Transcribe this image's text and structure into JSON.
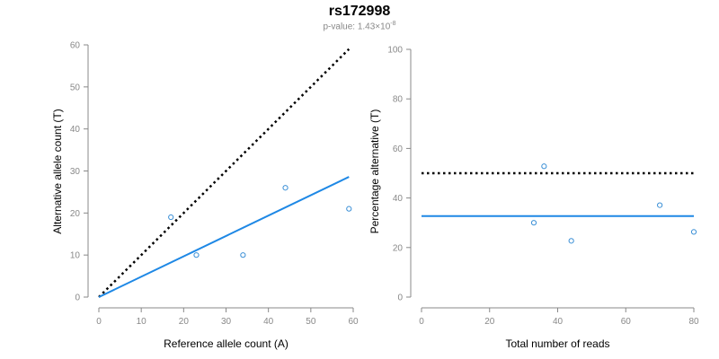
{
  "header": {
    "title": "rs172998",
    "pvalue_prefix": "p-value: 1.43×10",
    "pvalue_exponent": "-8"
  },
  "colors": {
    "points": "#3a8fd6",
    "fit_line": "#1e88e5",
    "reference_line": "#000000",
    "axis": "#888888"
  },
  "chart_data": [
    {
      "type": "scatter",
      "name": "allele-counts",
      "title": "",
      "xlabel": "Reference allele count (A)",
      "ylabel": "Alternative allele count (T)",
      "xlim": [
        0,
        60
      ],
      "ylim": [
        0,
        60
      ],
      "xticks": [
        0,
        10,
        20,
        30,
        40,
        50,
        60
      ],
      "yticks": [
        0,
        10,
        20,
        30,
        40,
        50,
        60
      ],
      "grid": false,
      "points": [
        {
          "x": 17,
          "y": 19
        },
        {
          "x": 23,
          "y": 10
        },
        {
          "x": 34,
          "y": 10
        },
        {
          "x": 44,
          "y": 26
        },
        {
          "x": 59,
          "y": 21
        }
      ],
      "fit_line": {
        "x": [
          0,
          59
        ],
        "y": [
          0,
          28.6
        ]
      },
      "reference_line": {
        "x": [
          0,
          59
        ],
        "y": [
          0,
          59
        ]
      }
    },
    {
      "type": "scatter",
      "name": "percentage-alternative",
      "title": "",
      "xlabel": "Total number of reads",
      "ylabel": "Percentage alternative (T)",
      "xlim": [
        0,
        80
      ],
      "ylim": [
        0,
        100
      ],
      "xticks": [
        0,
        20,
        40,
        60,
        80
      ],
      "yticks": [
        0,
        20,
        40,
        60,
        80,
        100
      ],
      "grid": false,
      "points": [
        {
          "x": 33,
          "y": 30
        },
        {
          "x": 36,
          "y": 52.8
        },
        {
          "x": 44,
          "y": 22.7
        },
        {
          "x": 70,
          "y": 37.1
        },
        {
          "x": 80,
          "y": 26.3
        }
      ],
      "fit_line": {
        "x": [
          0,
          80
        ],
        "y": [
          32.7,
          32.7
        ]
      },
      "reference_line": {
        "x": [
          0,
          80
        ],
        "y": [
          50,
          50
        ]
      }
    }
  ]
}
